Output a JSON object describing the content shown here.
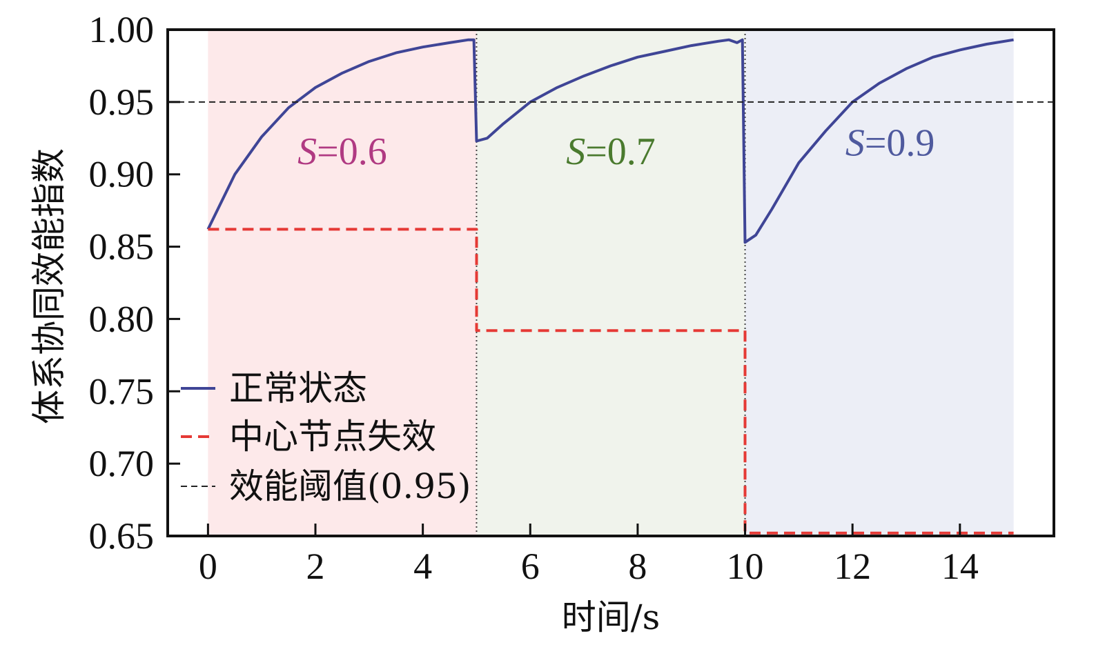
{
  "chart_data": {
    "type": "line",
    "xlabel": "时间/s",
    "ylabel": "体系协同效能指数",
    "xlim": [
      -0.75,
      15.75
    ],
    "ylim": [
      0.65,
      1.0
    ],
    "xticks": [
      0,
      2,
      4,
      6,
      8,
      10,
      12,
      14
    ],
    "yticks": [
      0.65,
      0.7,
      0.75,
      0.8,
      0.85,
      0.9,
      0.95,
      1.0
    ],
    "xtick_labels": [
      "0",
      "2",
      "4",
      "6",
      "8",
      "10",
      "12",
      "14"
    ],
    "ytick_labels": [
      "0.65",
      "0.70",
      "0.75",
      "0.80",
      "0.85",
      "0.90",
      "0.95",
      "1.00"
    ],
    "grid": false,
    "legend_position": "lower-left",
    "regions": [
      {
        "x": [
          0,
          5
        ],
        "label_italic": "S",
        "label_rest": "=0.6",
        "label_x": 2.5,
        "label_y": 0.907,
        "text_color": "#b03a82",
        "fill_color": "#fde9ea"
      },
      {
        "x": [
          5,
          10
        ],
        "label_italic": "S",
        "label_rest": "=0.7",
        "label_x": 7.5,
        "label_y": 0.907,
        "text_color": "#4a7a2e",
        "fill_color": "#f0f3ec"
      },
      {
        "x": [
          10,
          15
        ],
        "label_italic": "S",
        "label_rest": "=0.9",
        "label_x": 12.7,
        "label_y": 0.913,
        "text_color": "#4f5a9e",
        "fill_color": "#eceef6"
      }
    ],
    "series": [
      {
        "name": "正常状态",
        "style": "solid",
        "color": "#3f4596",
        "points": [
          [
            0,
            0.862
          ],
          [
            0.5,
            0.9
          ],
          [
            1,
            0.926
          ],
          [
            1.5,
            0.946
          ],
          [
            2,
            0.96
          ],
          [
            2.5,
            0.97
          ],
          [
            3,
            0.978
          ],
          [
            3.5,
            0.984
          ],
          [
            4,
            0.988
          ],
          [
            4.5,
            0.991
          ],
          [
            4.85,
            0.993
          ],
          [
            4.95,
            0.993
          ],
          [
            5,
            0.923
          ],
          [
            5.2,
            0.925
          ],
          [
            5.5,
            0.935
          ],
          [
            6,
            0.95
          ],
          [
            6.5,
            0.96
          ],
          [
            7,
            0.968
          ],
          [
            7.5,
            0.975
          ],
          [
            8,
            0.981
          ],
          [
            8.5,
            0.985
          ],
          [
            9,
            0.989
          ],
          [
            9.5,
            0.992
          ],
          [
            9.7,
            0.993
          ],
          [
            9.85,
            0.991
          ],
          [
            9.95,
            0.993
          ],
          [
            10,
            0.853
          ],
          [
            10.2,
            0.858
          ],
          [
            10.5,
            0.876
          ],
          [
            11,
            0.908
          ],
          [
            11.5,
            0.93
          ],
          [
            12,
            0.95
          ],
          [
            12.5,
            0.963
          ],
          [
            13,
            0.973
          ],
          [
            13.5,
            0.981
          ],
          [
            14,
            0.986
          ],
          [
            14.5,
            0.99
          ],
          [
            15,
            0.993
          ]
        ]
      },
      {
        "name": "中心节点失效",
        "style": "dashed",
        "color": "#e53935",
        "points": [
          [
            0,
            0.862
          ],
          [
            5,
            0.862
          ],
          [
            5,
            0.792
          ],
          [
            10,
            0.792
          ],
          [
            10,
            0.652
          ],
          [
            15,
            0.652
          ]
        ]
      },
      {
        "name": "效能阈值(0.95)",
        "style": "dashed-thin",
        "color": "#222222",
        "points": [
          [
            -0.75,
            0.95
          ],
          [
            15.75,
            0.95
          ]
        ]
      }
    ],
    "vertical_markers": [
      5,
      10
    ]
  }
}
